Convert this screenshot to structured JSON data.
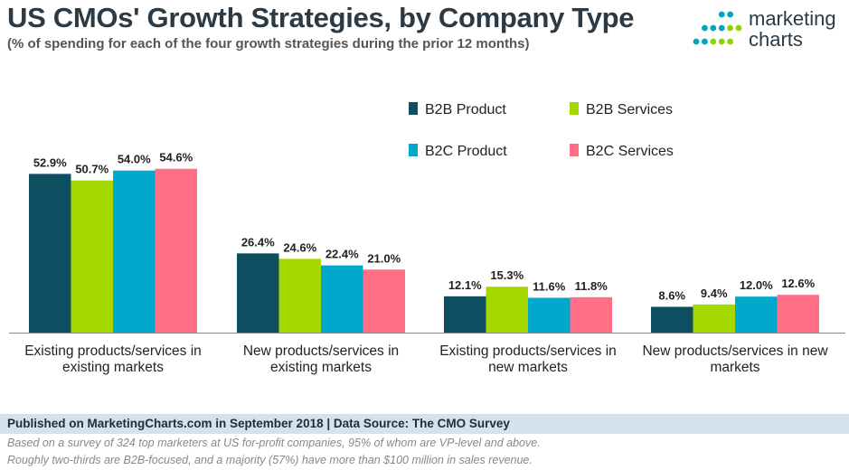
{
  "header": {
    "title": "US CMOs' Growth Strategies, by Company Type",
    "subtitle": "(% of spending for each of the four growth strategies during the prior 12 months)"
  },
  "logo": {
    "line1": "marketing",
    "line2": "charts",
    "dot_colors": [
      "#2b3a45",
      "#00a3c4",
      "#8fd400"
    ]
  },
  "chart_data": {
    "type": "bar",
    "categories": [
      "Existing products/services in existing markets",
      "New products/services in existing markets",
      "Existing products/services in new markets",
      "New products/services in new markets"
    ],
    "category_lines": [
      [
        "Existing products/services in",
        "existing markets"
      ],
      [
        "New products/services in",
        "existing markets"
      ],
      [
        "Existing products/services in",
        "new markets"
      ],
      [
        "New products/services in new",
        "markets"
      ]
    ],
    "series": [
      {
        "name": "B2B Product",
        "color": "#0d4f60",
        "values": [
          52.9,
          26.4,
          12.1,
          8.6
        ],
        "labels": [
          "52.9%",
          "26.4%",
          "12.1%",
          "8.6%"
        ]
      },
      {
        "name": "B2B Services",
        "color": "#a3d800",
        "values": [
          50.7,
          24.6,
          15.3,
          9.4
        ],
        "labels": [
          "50.7%",
          "24.6%",
          "15.3%",
          "9.4%"
        ]
      },
      {
        "name": "B2C Product",
        "color": "#00a8cc",
        "values": [
          54.0,
          22.4,
          11.6,
          12.0
        ],
        "labels": [
          "54.0%",
          "22.4%",
          "11.6%",
          "12.0%"
        ]
      },
      {
        "name": "B2C Services",
        "color": "#ff6f87",
        "values": [
          54.6,
          21.0,
          11.8,
          12.6
        ],
        "labels": [
          "54.6%",
          "21.0%",
          "11.8%",
          "12.6%"
        ]
      }
    ],
    "ylim": [
      0,
      60
    ],
    "grid": false,
    "legend_position": "top-right"
  },
  "footer": {
    "source": "Published on MarketingCharts.com in September 2018 | Data Source: The CMO Survey",
    "note_line1": "Based on a survey of 324 top marketers at US for-profit companies, 95% of whom are VP-level and above.",
    "note_line2": "Roughly two-thirds are B2B-focused, and a majority (57%) have more than $100 million in sales revenue."
  }
}
